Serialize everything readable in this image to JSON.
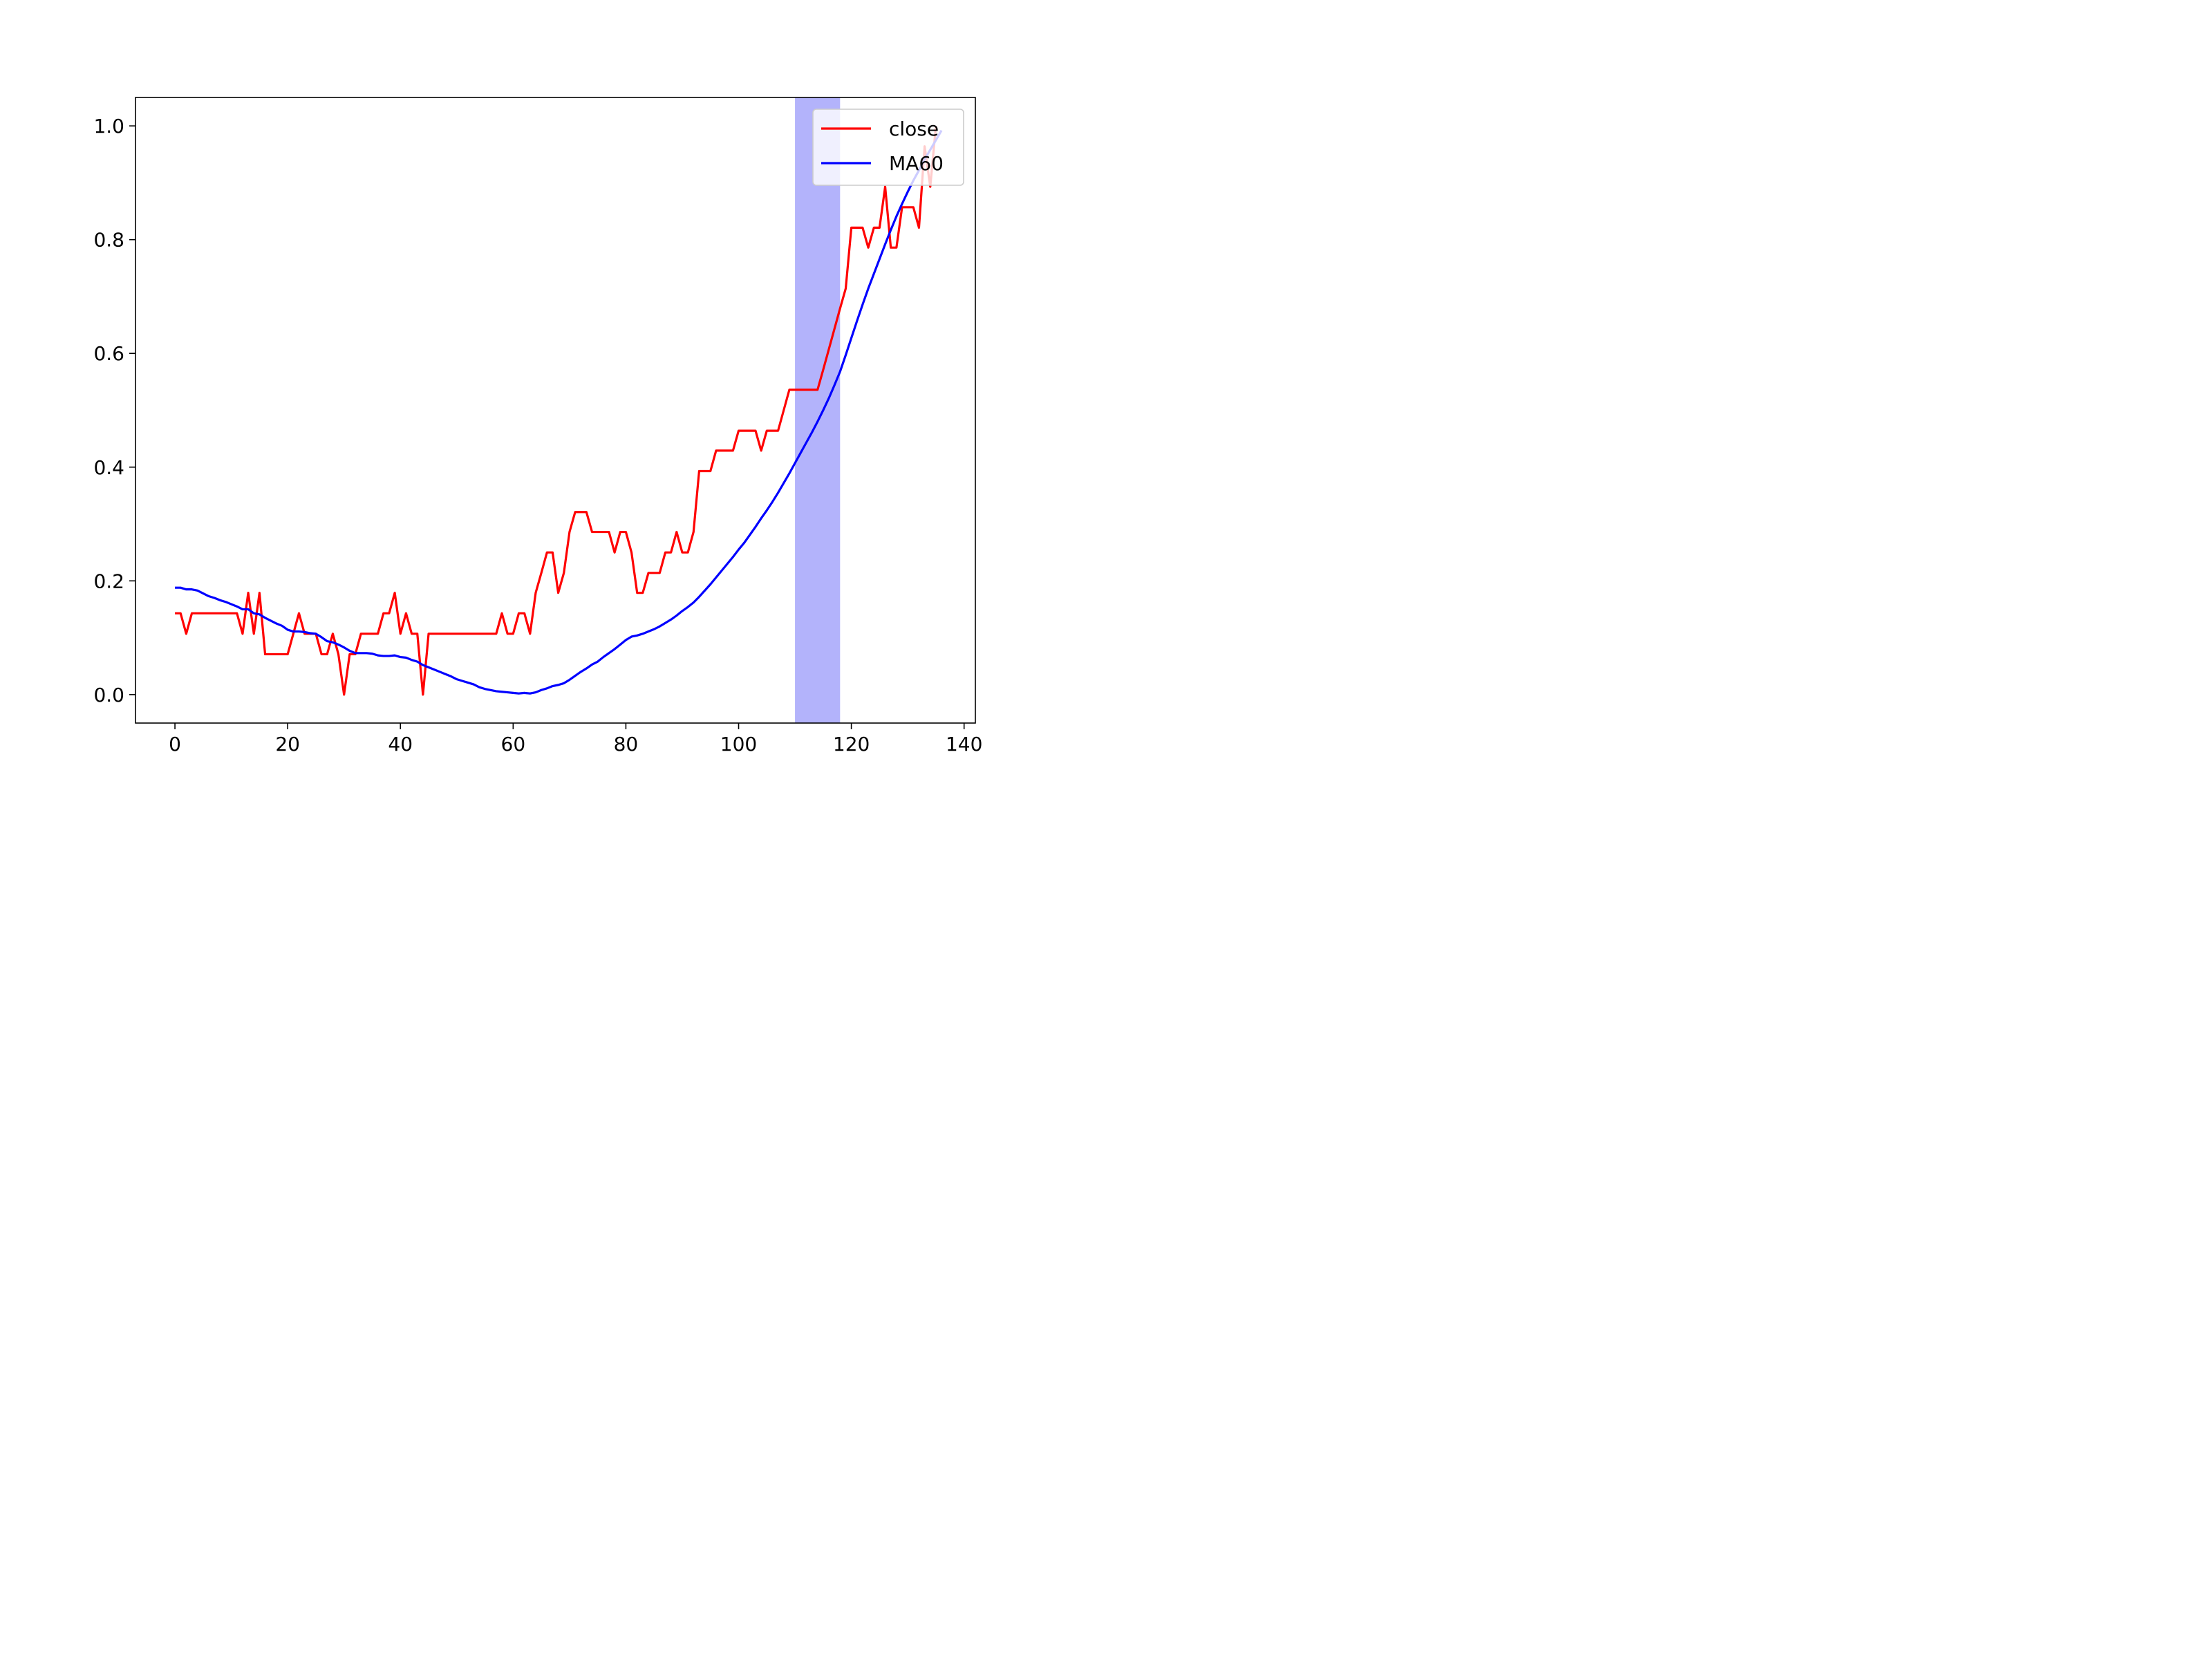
{
  "chart_data": {
    "type": "line",
    "title": "",
    "xlabel": "",
    "ylabel": "",
    "xlim": [
      -7,
      142
    ],
    "ylim": [
      -0.05,
      1.05
    ],
    "xticks": [
      0,
      20,
      40,
      60,
      80,
      100,
      120,
      140
    ],
    "yticks": [
      0.0,
      0.2,
      0.4,
      0.6,
      0.8,
      1.0
    ],
    "xtick_labels": [
      "0",
      "20",
      "40",
      "60",
      "80",
      "100",
      "120",
      "140"
    ],
    "ytick_labels": [
      "0.0",
      "0.2",
      "0.4",
      "0.6",
      "0.8",
      "1.0"
    ],
    "grid": false,
    "legend_position": "upper right",
    "highlight_span": {
      "x_start": 110,
      "x_end": 118,
      "color": "#b3b3fb"
    },
    "series": [
      {
        "name": "close",
        "color": "#ff0000",
        "points": [
          [
            0,
            0.143
          ],
          [
            1,
            0.143
          ],
          [
            2,
            0.107
          ],
          [
            3,
            0.143
          ],
          [
            4,
            0.143
          ],
          [
            5,
            0.143
          ],
          [
            6,
            0.143
          ],
          [
            7,
            0.143
          ],
          [
            8,
            0.143
          ],
          [
            9,
            0.143
          ],
          [
            10,
            0.143
          ],
          [
            11,
            0.143
          ],
          [
            12,
            0.107
          ],
          [
            13,
            0.179
          ],
          [
            14,
            0.107
          ],
          [
            15,
            0.179
          ],
          [
            16,
            0.071
          ],
          [
            17,
            0.071
          ],
          [
            18,
            0.071
          ],
          [
            19,
            0.071
          ],
          [
            20,
            0.071
          ],
          [
            21,
            0.107
          ],
          [
            22,
            0.143
          ],
          [
            23,
            0.107
          ],
          [
            24,
            0.107
          ],
          [
            25,
            0.107
          ],
          [
            26,
            0.071
          ],
          [
            27,
            0.071
          ],
          [
            28,
            0.107
          ],
          [
            29,
            0.071
          ],
          [
            30,
            0.0
          ],
          [
            31,
            0.071
          ],
          [
            32,
            0.071
          ],
          [
            33,
            0.107
          ],
          [
            34,
            0.107
          ],
          [
            35,
            0.107
          ],
          [
            36,
            0.107
          ],
          [
            37,
            0.143
          ],
          [
            38,
            0.143
          ],
          [
            39,
            0.179
          ],
          [
            40,
            0.107
          ],
          [
            41,
            0.143
          ],
          [
            42,
            0.107
          ],
          [
            43,
            0.107
          ],
          [
            44,
            0.0
          ],
          [
            45,
            0.107
          ],
          [
            46,
            0.107
          ],
          [
            47,
            0.107
          ],
          [
            48,
            0.107
          ],
          [
            49,
            0.107
          ],
          [
            50,
            0.107
          ],
          [
            51,
            0.107
          ],
          [
            52,
            0.107
          ],
          [
            53,
            0.107
          ],
          [
            54,
            0.107
          ],
          [
            55,
            0.107
          ],
          [
            56,
            0.107
          ],
          [
            57,
            0.107
          ],
          [
            58,
            0.143
          ],
          [
            59,
            0.107
          ],
          [
            60,
            0.107
          ],
          [
            61,
            0.143
          ],
          [
            62,
            0.143
          ],
          [
            63,
            0.107
          ],
          [
            64,
            0.179
          ],
          [
            65,
            0.214
          ],
          [
            66,
            0.25
          ],
          [
            67,
            0.25
          ],
          [
            68,
            0.179
          ],
          [
            69,
            0.214
          ],
          [
            70,
            0.286
          ],
          [
            71,
            0.321
          ],
          [
            72,
            0.321
          ],
          [
            73,
            0.321
          ],
          [
            74,
            0.286
          ],
          [
            75,
            0.286
          ],
          [
            76,
            0.286
          ],
          [
            77,
            0.286
          ],
          [
            78,
            0.25
          ],
          [
            79,
            0.286
          ],
          [
            80,
            0.286
          ],
          [
            81,
            0.25
          ],
          [
            82,
            0.179
          ],
          [
            83,
            0.179
          ],
          [
            84,
            0.214
          ],
          [
            85,
            0.214
          ],
          [
            86,
            0.214
          ],
          [
            87,
            0.25
          ],
          [
            88,
            0.25
          ],
          [
            89,
            0.286
          ],
          [
            90,
            0.25
          ],
          [
            91,
            0.25
          ],
          [
            92,
            0.286
          ],
          [
            93,
            0.393
          ],
          [
            94,
            0.393
          ],
          [
            95,
            0.393
          ],
          [
            96,
            0.429
          ],
          [
            97,
            0.429
          ],
          [
            98,
            0.429
          ],
          [
            99,
            0.429
          ],
          [
            100,
            0.464
          ],
          [
            101,
            0.464
          ],
          [
            102,
            0.464
          ],
          [
            103,
            0.464
          ],
          [
            104,
            0.429
          ],
          [
            105,
            0.464
          ],
          [
            106,
            0.464
          ],
          [
            107,
            0.464
          ],
          [
            108,
            0.5
          ],
          [
            109,
            0.536
          ],
          [
            110,
            0.536
          ],
          [
            111,
            0.536
          ],
          [
            112,
            0.536
          ],
          [
            113,
            0.536
          ],
          [
            114,
            0.536
          ],
          [
            115,
            0.571
          ],
          [
            116,
            0.607
          ],
          [
            117,
            0.643
          ],
          [
            118,
            0.679
          ],
          [
            119,
            0.714
          ],
          [
            120,
            0.821
          ],
          [
            121,
            0.821
          ],
          [
            122,
            0.821
          ],
          [
            123,
            0.786
          ],
          [
            124,
            0.821
          ],
          [
            125,
            0.821
          ],
          [
            126,
            0.893
          ],
          [
            127,
            0.786
          ],
          [
            128,
            0.786
          ],
          [
            129,
            0.857
          ],
          [
            130,
            0.857
          ],
          [
            131,
            0.857
          ],
          [
            132,
            0.821
          ],
          [
            133,
            0.964
          ],
          [
            134,
            0.893
          ],
          [
            135,
            1.0
          ]
        ]
      },
      {
        "name": "MA60",
        "color": "#0000ff",
        "points": [
          [
            0,
            0.188
          ],
          [
            1,
            0.188
          ],
          [
            2,
            0.185
          ],
          [
            3,
            0.185
          ],
          [
            4,
            0.183
          ],
          [
            5,
            0.178
          ],
          [
            6,
            0.173
          ],
          [
            7,
            0.17
          ],
          [
            8,
            0.166
          ],
          [
            9,
            0.163
          ],
          [
            10,
            0.159
          ],
          [
            11,
            0.155
          ],
          [
            12,
            0.15
          ],
          [
            13,
            0.15
          ],
          [
            14,
            0.143
          ],
          [
            15,
            0.141
          ],
          [
            16,
            0.135
          ],
          [
            17,
            0.13
          ],
          [
            18,
            0.125
          ],
          [
            19,
            0.121
          ],
          [
            20,
            0.114
          ],
          [
            21,
            0.111
          ],
          [
            22,
            0.111
          ],
          [
            23,
            0.11
          ],
          [
            24,
            0.108
          ],
          [
            25,
            0.107
          ],
          [
            26,
            0.101
          ],
          [
            27,
            0.094
          ],
          [
            28,
            0.092
          ],
          [
            29,
            0.088
          ],
          [
            30,
            0.083
          ],
          [
            31,
            0.077
          ],
          [
            32,
            0.073
          ],
          [
            33,
            0.073
          ],
          [
            34,
            0.073
          ],
          [
            35,
            0.072
          ],
          [
            36,
            0.069
          ],
          [
            37,
            0.068
          ],
          [
            38,
            0.068
          ],
          [
            39,
            0.069
          ],
          [
            40,
            0.066
          ],
          [
            41,
            0.065
          ],
          [
            42,
            0.061
          ],
          [
            43,
            0.058
          ],
          [
            44,
            0.052
          ],
          [
            45,
            0.048
          ],
          [
            46,
            0.044
          ],
          [
            47,
            0.04
          ],
          [
            48,
            0.036
          ],
          [
            49,
            0.032
          ],
          [
            50,
            0.027
          ],
          [
            51,
            0.024
          ],
          [
            52,
            0.021
          ],
          [
            53,
            0.018
          ],
          [
            54,
            0.013
          ],
          [
            55,
            0.01
          ],
          [
            56,
            0.008
          ],
          [
            57,
            0.006
          ],
          [
            58,
            0.005
          ],
          [
            59,
            0.004
          ],
          [
            60,
            0.003
          ],
          [
            61,
            0.002
          ],
          [
            62,
            0.003
          ],
          [
            63,
            0.002
          ],
          [
            64,
            0.004
          ],
          [
            65,
            0.008
          ],
          [
            66,
            0.011
          ],
          [
            67,
            0.015
          ],
          [
            68,
            0.017
          ],
          [
            69,
            0.02
          ],
          [
            70,
            0.026
          ],
          [
            71,
            0.033
          ],
          [
            72,
            0.04
          ],
          [
            73,
            0.046
          ],
          [
            74,
            0.053
          ],
          [
            75,
            0.058
          ],
          [
            76,
            0.066
          ],
          [
            77,
            0.073
          ],
          [
            78,
            0.08
          ],
          [
            79,
            0.088
          ],
          [
            80,
            0.096
          ],
          [
            81,
            0.102
          ],
          [
            82,
            0.104
          ],
          [
            83,
            0.107
          ],
          [
            84,
            0.111
          ],
          [
            85,
            0.115
          ],
          [
            86,
            0.12
          ],
          [
            87,
            0.126
          ],
          [
            88,
            0.132
          ],
          [
            89,
            0.139
          ],
          [
            90,
            0.147
          ],
          [
            91,
            0.154
          ],
          [
            92,
            0.162
          ],
          [
            93,
            0.172
          ],
          [
            94,
            0.183
          ],
          [
            95,
            0.194
          ],
          [
            96,
            0.206
          ],
          [
            97,
            0.218
          ],
          [
            98,
            0.23
          ],
          [
            99,
            0.242
          ],
          [
            100,
            0.255
          ],
          [
            101,
            0.267
          ],
          [
            102,
            0.281
          ],
          [
            103,
            0.295
          ],
          [
            104,
            0.31
          ],
          [
            105,
            0.324
          ],
          [
            106,
            0.339
          ],
          [
            107,
            0.355
          ],
          [
            108,
            0.372
          ],
          [
            109,
            0.389
          ],
          [
            110,
            0.407
          ],
          [
            111,
            0.425
          ],
          [
            112,
            0.443
          ],
          [
            113,
            0.461
          ],
          [
            114,
            0.48
          ],
          [
            115,
            0.5
          ],
          [
            116,
            0.521
          ],
          [
            117,
            0.544
          ],
          [
            118,
            0.568
          ],
          [
            119,
            0.597
          ],
          [
            120,
            0.627
          ],
          [
            121,
            0.657
          ],
          [
            122,
            0.686
          ],
          [
            123,
            0.714
          ],
          [
            124,
            0.74
          ],
          [
            125,
            0.766
          ],
          [
            126,
            0.792
          ],
          [
            127,
            0.817
          ],
          [
            128,
            0.841
          ],
          [
            129,
            0.863
          ],
          [
            130,
            0.884
          ],
          [
            131,
            0.904
          ],
          [
            132,
            0.922
          ],
          [
            133,
            0.941
          ],
          [
            134,
            0.958
          ],
          [
            135,
            0.975
          ],
          [
            136,
            0.992
          ]
        ]
      }
    ]
  }
}
